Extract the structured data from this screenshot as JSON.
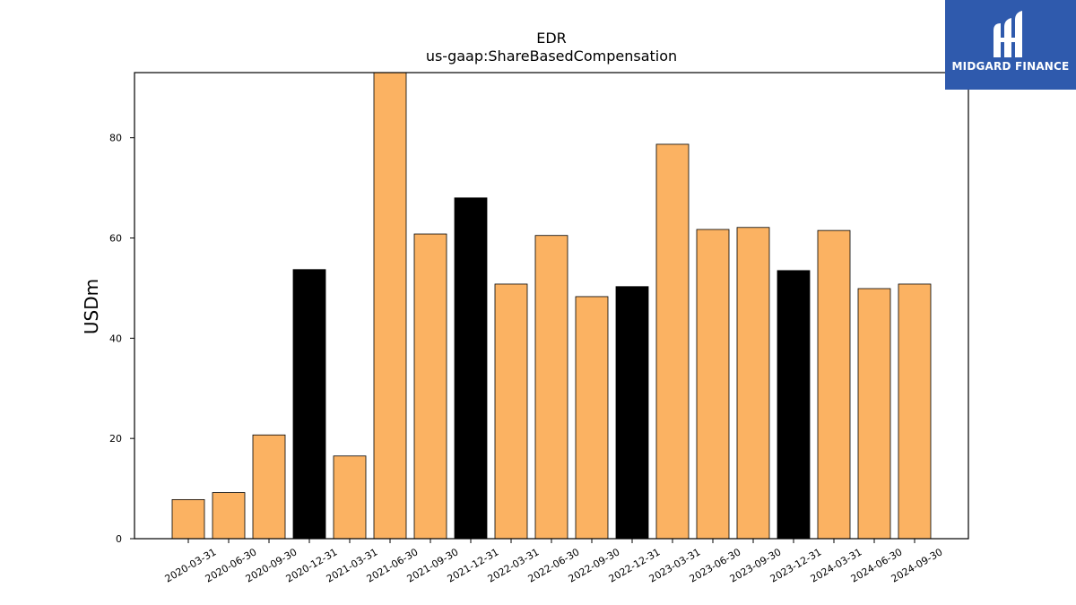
{
  "chart_data": {
    "type": "bar",
    "title": "EDR",
    "subtitle": "us-gaap:ShareBasedCompensation",
    "xlabel": "",
    "ylabel": "USDm",
    "ylim": [
      0,
      93
    ],
    "yticks": [
      0,
      20,
      40,
      60,
      80
    ],
    "categories": [
      "2020-03-31",
      "2020-06-30",
      "2020-09-30",
      "2020-12-31",
      "2021-03-31",
      "2021-06-30",
      "2021-09-30",
      "2021-12-31",
      "2022-03-31",
      "2022-06-30",
      "2022-09-30",
      "2022-12-31",
      "2023-03-31",
      "2023-06-30",
      "2023-09-30",
      "2023-12-31",
      "2024-03-31",
      "2024-06-30",
      "2024-09-30"
    ],
    "values": [
      7.8,
      9.2,
      20.7,
      53.7,
      16.5,
      93.0,
      60.8,
      68.0,
      50.8,
      60.5,
      48.3,
      50.3,
      78.7,
      61.7,
      62.1,
      53.5,
      61.5,
      49.9,
      50.8
    ],
    "highlight": [
      false,
      false,
      false,
      true,
      false,
      false,
      false,
      true,
      false,
      false,
      false,
      true,
      false,
      false,
      false,
      true,
      false,
      false,
      false
    ],
    "colors": {
      "bar": "#fbb262",
      "highlight": "#000000",
      "edge": "#000000"
    },
    "grid": false
  },
  "logo": {
    "text": "MIDGARD FINANCE",
    "background": "#2f5aad"
  }
}
